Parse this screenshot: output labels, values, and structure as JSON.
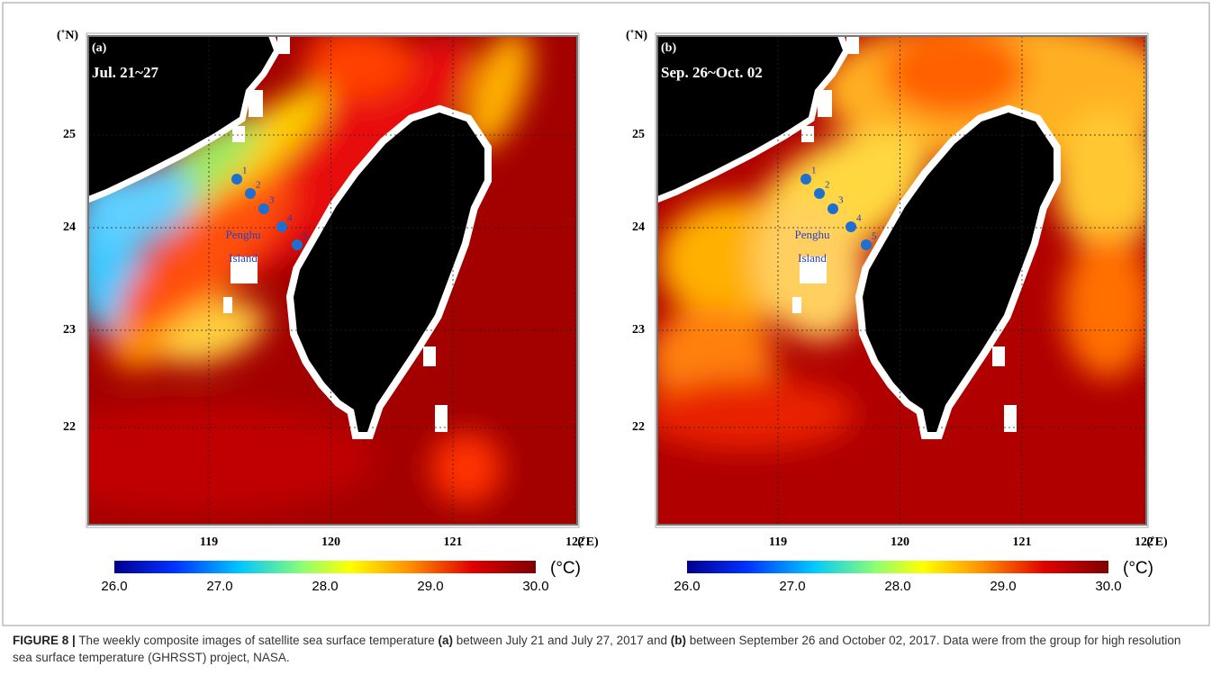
{
  "panels": [
    {
      "label": "(a)",
      "period": "Jul. 21~27",
      "lat_unit": "(˚N)",
      "lat_ticks": [
        "25",
        "24",
        "23",
        "22"
      ],
      "lon_ticks": [
        "119",
        "120",
        "121",
        "122"
      ],
      "lon_unit": "(˚E)",
      "stations": [
        "1",
        "2",
        "3",
        "4",
        "5"
      ],
      "island": [
        "Penghu",
        "Island"
      ],
      "colorbar_ticks": [
        "26.0",
        "27.0",
        "28.0",
        "29.0",
        "30.0"
      ],
      "colorbar_unit": "(°C)"
    },
    {
      "label": "(b)",
      "period": "Sep. 26~Oct. 02",
      "lat_unit": "(˚N)",
      "lat_ticks": [
        "25",
        "24",
        "23",
        "22"
      ],
      "lon_ticks": [
        "119",
        "120",
        "121",
        "122"
      ],
      "lon_unit": "(˚E)",
      "stations": [
        "1",
        "2",
        "3",
        "4",
        "5"
      ],
      "island": [
        "Penghu",
        "Island"
      ],
      "colorbar_ticks": [
        "26.0",
        "27.0",
        "28.0",
        "29.0",
        "30.0"
      ],
      "colorbar_unit": "(°C)"
    }
  ],
  "caption": {
    "label": "FIGURE 8 |",
    "text1": "The weekly composite images of satellite sea surface temperature",
    "a": "(a)",
    "text2": "between July 21 and July 27, 2017 and",
    "b": "(b)",
    "text3": "between September 26 and October 02, 2017. Data were from the group for high resolution sea surface temperature (GHRSST) project, NASA."
  }
}
